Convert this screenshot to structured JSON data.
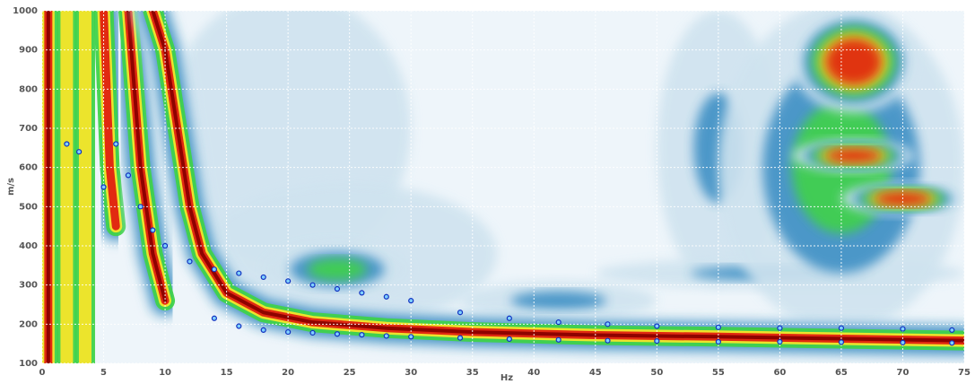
{
  "chart_data": {
    "type": "dispersion",
    "xlabel": "Hz",
    "ylabel": "m/s",
    "xlim": [
      0,
      75
    ],
    "ylim": [
      100,
      1000
    ],
    "xticks": [
      0,
      5,
      10,
      15,
      20,
      25,
      30,
      35,
      40,
      45,
      50,
      55,
      60,
      65,
      70,
      75
    ],
    "yticks": [
      100,
      200,
      300,
      400,
      500,
      600,
      700,
      800,
      900,
      1000
    ],
    "grid": true,
    "patches": [
      {
        "x": 20,
        "y": 700,
        "rx": 10,
        "ry": 350,
        "level": 0.15
      },
      {
        "x": 25,
        "y": 380,
        "rx": 12,
        "ry": 180,
        "level": 0.25
      },
      {
        "x": 55,
        "y": 650,
        "rx": 5,
        "ry": 350,
        "level": 0.3
      },
      {
        "x": 60,
        "y": 330,
        "rx": 15,
        "ry": 40,
        "level": 0.35
      },
      {
        "x": 42,
        "y": 260,
        "rx": 8,
        "ry": 50,
        "level": 0.35
      },
      {
        "x": 24,
        "y": 340,
        "rx": 6,
        "ry": 70,
        "level": 0.5
      },
      {
        "x": 65,
        "y": 600,
        "rx": 10,
        "ry": 420,
        "level": 0.5
      },
      {
        "x": 66,
        "y": 870,
        "rx": 5,
        "ry": 130,
        "level": 0.95
      },
      {
        "x": 66,
        "y": 630,
        "rx": 5,
        "ry": 40,
        "level": 0.95
      },
      {
        "x": 70,
        "y": 520,
        "rx": 5,
        "ry": 40,
        "level": 0.95
      }
    ],
    "ridges": [
      {
        "x": [
          0.5,
          0.5
        ],
        "y": [
          100,
          1000
        ],
        "level": 1
      },
      {
        "x": [
          2,
          2
        ],
        "y": [
          100,
          1000
        ],
        "level": 0.8
      },
      {
        "x": [
          3.5,
          3.5
        ],
        "y": [
          100,
          1000
        ],
        "level": 0.7
      },
      {
        "x": [
          5,
          5.5,
          6
        ],
        "y": [
          1000,
          600,
          450
        ],
        "level": 0.9
      },
      {
        "x": [
          7,
          7.5,
          8,
          9,
          10
        ],
        "y": [
          1000,
          800,
          600,
          380,
          260
        ],
        "level": 1
      },
      {
        "x": [
          9,
          10,
          11,
          12,
          13,
          15,
          18,
          22,
          28,
          35,
          45,
          55,
          65,
          75
        ],
        "y": [
          1000,
          900,
          700,
          500,
          380,
          280,
          230,
          205,
          190,
          180,
          172,
          168,
          163,
          158
        ],
        "level": 1
      }
    ],
    "picks_upper": {
      "x": [
        2,
        3,
        5,
        6,
        7,
        8,
        9,
        10,
        12,
        14,
        16,
        18,
        20,
        22,
        24,
        26,
        28,
        30,
        34,
        38,
        42,
        46,
        50,
        55,
        60,
        65,
        70,
        74
      ],
      "y": [
        660,
        640,
        550,
        660,
        580,
        500,
        440,
        400,
        360,
        340,
        330,
        320,
        310,
        300,
        290,
        280,
        270,
        260,
        230,
        215,
        205,
        200,
        195,
        192,
        190,
        190,
        188,
        185
      ]
    },
    "picks_lower": {
      "x": [
        14,
        16,
        18,
        20,
        22,
        24,
        26,
        28,
        30,
        34,
        38,
        42,
        46,
        50,
        55,
        60,
        65,
        70,
        74
      ],
      "y": [
        215,
        195,
        185,
        180,
        178,
        175,
        173,
        170,
        168,
        165,
        162,
        160,
        158,
        157,
        155,
        155,
        154,
        153,
        152
      ]
    }
  }
}
